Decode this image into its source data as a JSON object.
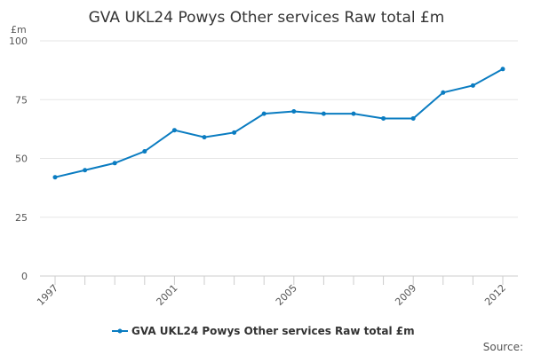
{
  "chart_data": {
    "type": "line",
    "title": "GVA UKL24 Powys Other services Raw total £m",
    "ylabel": "£m",
    "xlabel": "",
    "x": [
      1997,
      1998,
      1999,
      2000,
      2001,
      2002,
      2003,
      2004,
      2005,
      2006,
      2007,
      2008,
      2009,
      2010,
      2011,
      2012
    ],
    "x_tick_labels": [
      "1997",
      "2001",
      "2005",
      "2009",
      "2012"
    ],
    "y_ticks": [
      0,
      25,
      50,
      75,
      100
    ],
    "ylim": [
      0,
      100
    ],
    "grid": true,
    "legend": "bottom-center",
    "series": [
      {
        "name": "GVA UKL24 Powys Other services Raw total £m",
        "color": "#0a7cc1",
        "values": [
          42,
          45,
          48,
          53,
          62,
          59,
          61,
          69,
          70,
          69,
          69,
          67,
          67,
          78,
          81,
          88
        ]
      }
    ],
    "source_label": "Source:"
  }
}
